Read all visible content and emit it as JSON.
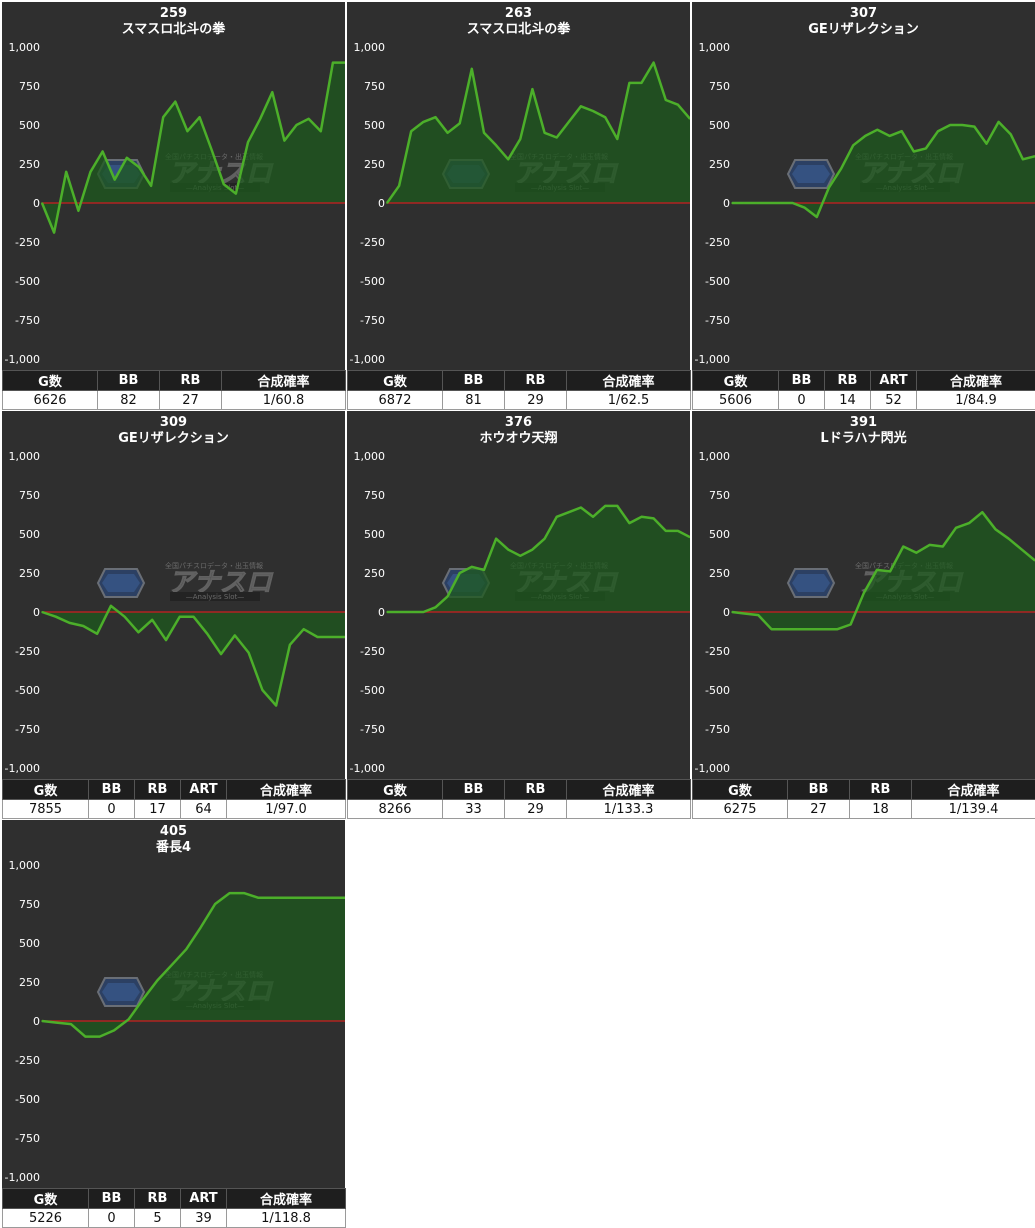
{
  "watermark": {
    "brand": "アナスロ",
    "sub": "—Analysis Slot—",
    "caption": "全国パチスロデータ・出玉情報"
  },
  "colors": {
    "background": "#2f2f2f",
    "line": "#4caf2a",
    "fill": "#1e5a1e",
    "zero_line": "#b22222"
  },
  "chart_data": [
    {
      "type": "area",
      "title": "259",
      "subtitle": "スマスロ北斗の拳",
      "ylim": [
        -1000,
        1000
      ],
      "yticks": [
        "1,000",
        "750",
        "500",
        "250",
        "0",
        "-250",
        "-500",
        "-750",
        "-1,000"
      ],
      "grid": false,
      "y": [
        0,
        -190,
        200,
        -50,
        200,
        330,
        150,
        290,
        230,
        110,
        550,
        650,
        460,
        550,
        340,
        120,
        60,
        390,
        540,
        710,
        400,
        500,
        540,
        460,
        900,
        900
      ],
      "stats": {
        "headers": [
          "G数",
          "BB",
          "RB",
          "合成確率"
        ],
        "values": [
          "6626",
          "82",
          "27",
          "1/60.8"
        ]
      }
    },
    {
      "type": "area",
      "title": "263",
      "subtitle": "スマスロ北斗の拳",
      "ylim": [
        -1000,
        1000
      ],
      "yticks": [
        "1,000",
        "750",
        "500",
        "250",
        "0",
        "-250",
        "-500",
        "-750",
        "-1,000"
      ],
      "grid": false,
      "y": [
        0,
        110,
        460,
        520,
        550,
        450,
        510,
        860,
        450,
        370,
        280,
        410,
        730,
        450,
        420,
        520,
        620,
        590,
        550,
        410,
        770,
        770,
        900,
        660,
        630,
        540
      ],
      "stats": {
        "headers": [
          "G数",
          "BB",
          "RB",
          "合成確率"
        ],
        "values": [
          "6872",
          "81",
          "29",
          "1/62.5"
        ]
      }
    },
    {
      "type": "area",
      "title": "307",
      "subtitle": "GEリザレクション",
      "ylim": [
        -1000,
        1000
      ],
      "yticks": [
        "1,000",
        "750",
        "500",
        "250",
        "0",
        "-250",
        "-500",
        "-750",
        "-1,000"
      ],
      "grid": false,
      "y": [
        0,
        0,
        0,
        0,
        0,
        0,
        -30,
        -90,
        100,
        220,
        370,
        430,
        470,
        430,
        460,
        330,
        350,
        460,
        500,
        500,
        490,
        380,
        520,
        440,
        280,
        300
      ],
      "stats": {
        "headers": [
          "G数",
          "BB",
          "RB",
          "ART",
          "合成確率"
        ],
        "values": [
          "5606",
          "0",
          "14",
          "52",
          "1/84.9"
        ]
      }
    },
    {
      "type": "area",
      "title": "309",
      "subtitle": "GEリザレクション",
      "ylim": [
        -1000,
        1000
      ],
      "yticks": [
        "1,000",
        "750",
        "500",
        "250",
        "0",
        "-250",
        "-500",
        "-750",
        "-1,000"
      ],
      "grid": false,
      "y": [
        0,
        -30,
        -70,
        -90,
        -140,
        40,
        -30,
        -130,
        -50,
        -180,
        -30,
        -30,
        -140,
        -270,
        -150,
        -260,
        -500,
        -600,
        -210,
        -110,
        -160,
        -160,
        -160
      ],
      "stats": {
        "headers": [
          "G数",
          "BB",
          "RB",
          "ART",
          "合成確率"
        ],
        "values": [
          "7855",
          "0",
          "17",
          "64",
          "1/97.0"
        ]
      }
    },
    {
      "type": "area",
      "title": "376",
      "subtitle": "ホウオウ天翔",
      "ylim": [
        -1000,
        1000
      ],
      "yticks": [
        "1,000",
        "750",
        "500",
        "250",
        "0",
        "-250",
        "-500",
        "-750",
        "-1,000"
      ],
      "grid": false,
      "y": [
        0,
        0,
        0,
        0,
        30,
        100,
        250,
        290,
        270,
        470,
        400,
        360,
        400,
        470,
        610,
        640,
        670,
        610,
        680,
        680,
        570,
        610,
        600,
        520,
        520,
        480
      ],
      "stats": {
        "headers": [
          "G数",
          "BB",
          "RB",
          "合成確率"
        ],
        "values": [
          "8266",
          "33",
          "29",
          "1/133.3"
        ]
      }
    },
    {
      "type": "area",
      "title": "391",
      "subtitle": "Lドラハナ閃光",
      "ylim": [
        -1000,
        1000
      ],
      "yticks": [
        "1,000",
        "750",
        "500",
        "250",
        "0",
        "-250",
        "-500",
        "-750",
        "-1,000"
      ],
      "grid": false,
      "y": [
        0,
        -10,
        -20,
        -110,
        -110,
        -110,
        -110,
        -110,
        -110,
        -80,
        120,
        270,
        260,
        420,
        380,
        430,
        420,
        540,
        570,
        640,
        530,
        470,
        400,
        330
      ],
      "stats": {
        "headers": [
          "G数",
          "BB",
          "RB",
          "合成確率"
        ],
        "values": [
          "6275",
          "27",
          "18",
          "1/139.4"
        ]
      }
    },
    {
      "type": "area",
      "title": "405",
      "subtitle": "番長4",
      "ylim": [
        -1000,
        1000
      ],
      "yticks": [
        "1,000",
        "750",
        "500",
        "250",
        "0",
        "-250",
        "-500",
        "-750",
        "-1,000"
      ],
      "grid": false,
      "y": [
        0,
        -10,
        -20,
        -100,
        -100,
        -60,
        10,
        140,
        260,
        360,
        460,
        600,
        750,
        820,
        820,
        790,
        790,
        790,
        790,
        790,
        790,
        790
      ],
      "stats": {
        "headers": [
          "G数",
          "BB",
          "RB",
          "ART",
          "合成確率"
        ],
        "values": [
          "5226",
          "0",
          "5",
          "39",
          "1/118.8"
        ]
      }
    }
  ]
}
